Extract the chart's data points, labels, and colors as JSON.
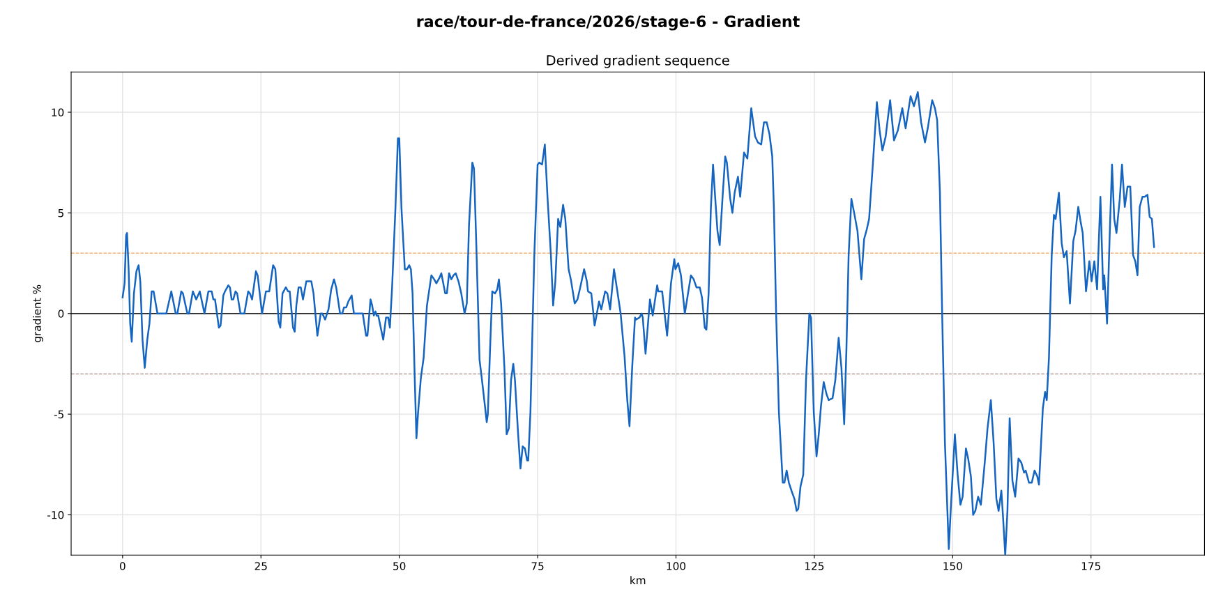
{
  "chart_data": {
    "type": "line",
    "title": "race/tour-de-france/2026/stage-6 - Gradient",
    "subtitle": "Derived gradient sequence",
    "xlabel": "km",
    "ylabel": "gradient %",
    "xlim": [
      -9.3,
      195.5
    ],
    "ylim": [
      -12,
      12
    ],
    "xticks": [
      0,
      25,
      50,
      75,
      100,
      125,
      150,
      175
    ],
    "yticks": [
      -10,
      -5,
      0,
      5,
      10
    ],
    "grid": true,
    "legend": false,
    "marker": "none",
    "line_style": "solid",
    "ref_lines": [
      {
        "axis": "y",
        "value": 3,
        "label": null,
        "color": "#f2a65e",
        "line_style": "dashed"
      },
      {
        "axis": "y",
        "value": -3,
        "label": null,
        "color": "#a88a86",
        "line_style": "dashed"
      },
      {
        "axis": "y",
        "value": 0,
        "label": null,
        "color": "#222222",
        "line_style": "solid"
      }
    ],
    "series": [
      {
        "color": "#1565c0",
        "x": [
          0,
          0.36,
          0.64,
          0.8,
          1.09,
          1.37,
          1.65,
          2.05,
          2.5,
          2.89,
          3.2,
          3.6,
          4.0,
          4.46,
          4.85,
          5.25,
          5.6,
          6.3,
          7.9,
          8.8,
          9.6,
          9.9,
          10.6,
          10.9,
          11.7,
          12,
          12.7,
          13.3,
          13.95,
          14.8,
          15.5,
          16.1,
          16.4,
          16.7,
          17.4,
          17.7,
          18.2,
          18.5,
          19.1,
          19.4,
          19.7,
          20.0,
          20.4,
          20.7,
          21.3,
          22,
          22.7,
          23,
          23.4,
          24.1,
          24.4,
          25.2,
          25.9,
          26.5,
          27.2,
          27.6,
          28.2,
          28.5,
          28.9,
          29.5,
          29.9,
          30.2,
          30.8,
          31.1,
          31.4,
          31.8,
          32.2,
          32.6,
          33.2,
          34.1,
          34.5,
          35.2,
          35.8,
          36.1,
          36.6,
          37.2,
          37.7,
          38.2,
          38.6,
          39.3,
          39.7,
          40,
          40.4,
          40.8,
          41.4,
          41.8,
          43.0,
          43.4,
          44.0,
          44.25,
          44.8,
          45.1,
          45.4,
          45.7,
          45.9,
          46.2,
          47.1,
          47.6,
          48.0,
          48.3,
          48.7,
          49.3,
          49.75,
          50.0,
          50.4,
          51.0,
          51.4,
          51.8,
          52.1,
          52.4,
          52.8,
          53.1,
          53.4,
          53.9,
          54.4,
          55.0,
          55.8,
          56.3,
          56.7,
          57.3,
          57.6,
          58.3,
          58.6,
          59.0,
          59.4,
          59.8,
          60.2,
          60.7,
          61.2,
          61.8,
          62.2,
          62.6,
          63.2,
          63.5,
          63.9,
          64.5,
          64.9,
          65.4,
          65.8,
          66.0,
          66.4,
          66.8,
          67.3,
          67.7,
          68.0,
          68.4,
          69.0,
          69.4,
          69.8,
          70.2,
          70.6,
          70.9,
          71.5,
          71.9,
          72.3,
          72.7,
          73.1,
          73.3,
          73.7,
          74.4,
          75.0,
          75.3,
          75.8,
          76.3,
          76.8,
          77.4,
          77.8,
          78.2,
          78.7,
          79.1,
          79.6,
          80.0,
          80.6,
          81.0,
          81.7,
          82.2,
          82.7,
          83.4,
          83.9,
          84.1,
          84.7,
          85.3,
          86.1,
          86.5,
          87.2,
          87.6,
          88.1,
          88.8,
          89.3,
          90.0,
          90.7,
          91.2,
          91.6,
          92.1,
          92.6,
          92.8,
          93.4,
          93.8,
          94.0,
          94.5,
          95.3,
          95.8,
          96.6,
          96.8,
          97.5,
          98.4,
          99.1,
          99.7,
          99.9,
          100.4,
          100.9,
          101.6,
          102.7,
          103.2,
          103.7,
          104.3,
          104.7,
          105.2,
          105.5,
          105.9,
          106.3,
          106.7,
          107.1,
          107.5,
          107.9,
          108.4,
          108.9,
          109.2,
          109.8,
          110.2,
          110.6,
          111.2,
          111.6,
          112.3,
          112.9,
          113.6,
          114.3,
          114.8,
          115.4,
          115.9,
          116.4,
          116.9,
          117.4,
          117.7,
          118.1,
          118.6,
          119.3,
          119.6,
          120.0,
          120.4,
          121.0,
          121.4,
          121.8,
          122.1,
          122.5,
          123.0,
          123.5,
          124.1,
          124.4,
          124.9,
          125.4,
          125.8,
          126.2,
          126.7,
          127.2,
          127.6,
          128.3,
          128.8,
          129.4,
          129.9,
          130.4,
          130.8,
          131.2,
          131.7,
          132.2,
          132.8,
          133.5,
          134.0,
          134.5,
          134.9,
          135.6,
          136.3,
          136.8,
          137.3,
          137.9,
          138.2,
          138.7,
          139.4,
          140.1,
          140.9,
          141.5,
          142.4,
          143.0,
          143.7,
          144.3,
          145.0,
          145.5,
          146.3,
          146.8,
          147.2,
          147.7,
          148.1,
          148.6,
          149.3,
          149.7,
          150.4,
          150.9,
          151.4,
          151.8,
          152.4,
          152.8,
          153.3,
          153.7,
          154.1,
          154.6,
          155.1,
          155.8,
          156.3,
          156.9,
          157.4,
          157.9,
          158.3,
          158.8,
          159.1,
          159.5,
          159.9,
          160.3,
          160.8,
          161.3,
          161.9,
          162.4,
          162.9,
          163.2,
          163.8,
          164.3,
          164.8,
          165.3,
          165.6,
          166.3,
          166.7,
          167.0,
          167.4,
          167.9,
          168.3,
          168.6,
          169.2,
          169.7,
          170.1,
          170.6,
          171.2,
          171.8,
          172.2,
          172.7,
          173.1,
          173.5,
          174.1,
          174.7,
          175.1,
          175.6,
          176.1,
          176.7,
          177.2,
          177.4,
          177.9,
          178.4,
          178.8,
          179.2,
          179.6,
          180.2,
          180.6,
          181.1,
          181.6,
          182.1,
          182.6,
          183.0,
          183.4,
          183.8,
          184.3,
          184.7,
          185.2,
          185.6,
          186.0,
          186.4
        ],
        "values": [
          0.8,
          1.5,
          3.9,
          4.0,
          2.2,
          -0.5,
          -1.4,
          1.0,
          2.1,
          2.4,
          1.6,
          -1.3,
          -2.7,
          -1.3,
          -0.5,
          1.1,
          1.1,
          0,
          0,
          1.1,
          0,
          0,
          1.1,
          1.0,
          0,
          0,
          1.1,
          0.7,
          1.1,
          0,
          1.1,
          1.1,
          0.7,
          0.7,
          -0.7,
          -0.6,
          0.9,
          1.1,
          1.4,
          1.3,
          0.7,
          0.7,
          1.1,
          1.0,
          0,
          0,
          1.1,
          1.0,
          0.7,
          2.1,
          1.9,
          0,
          1.1,
          1.1,
          2.4,
          2.2,
          -0.4,
          -0.7,
          1.0,
          1.3,
          1.1,
          1.1,
          -0.7,
          -0.9,
          0.4,
          1.3,
          1.3,
          0.7,
          1.6,
          1.6,
          1.0,
          -1.1,
          0,
          0,
          -0.3,
          0.2,
          1.2,
          1.7,
          1.3,
          0,
          0,
          0.3,
          0.3,
          0.6,
          0.9,
          0,
          0,
          0,
          -1.1,
          -1.1,
          0.7,
          0.4,
          -0.1,
          0.1,
          -0.1,
          -0.1,
          -1.3,
          -0.2,
          -0.2,
          -0.7,
          1.3,
          5.2,
          8.7,
          8.7,
          5.2,
          2.2,
          2.2,
          2.4,
          2.2,
          1.0,
          -3.3,
          -6.2,
          -4.9,
          -3.2,
          -2.2,
          0.4,
          1.9,
          1.7,
          1.5,
          1.8,
          2.0,
          1.0,
          1.0,
          2.0,
          1.7,
          1.9,
          2.0,
          1.6,
          1.0,
          0,
          0.5,
          4.4,
          7.5,
          7.2,
          3.6,
          -2.3,
          -3.2,
          -4.4,
          -5.4,
          -5.0,
          -1.8,
          1.1,
          1.0,
          1.2,
          1.7,
          0.5,
          -2.7,
          -6.0,
          -5.7,
          -3.3,
          -2.5,
          -3.3,
          -6.1,
          -7.7,
          -6.6,
          -6.7,
          -7.3,
          -7.3,
          -4.9,
          2.9,
          7.4,
          7.5,
          7.4,
          8.4,
          5.7,
          2.9,
          0.4,
          1.6,
          4.7,
          4.3,
          5.4,
          4.7,
          2.2,
          1.7,
          0.5,
          0.7,
          1.3,
          2.2,
          1.6,
          1.1,
          1.0,
          -0.6,
          0.6,
          0.2,
          1.1,
          1.0,
          0.2,
          2.2,
          1.3,
          0,
          -2.1,
          -4.3,
          -5.6,
          -2.6,
          -0.2,
          -0.3,
          -0.2,
          0,
          -0.2,
          -2.0,
          0.7,
          -0.1,
          1.4,
          1.1,
          1.1,
          -1.1,
          1.5,
          2.7,
          2.2,
          2.5,
          1.9,
          0,
          1.9,
          1.7,
          1.3,
          1.3,
          0.8,
          -0.7,
          -0.8,
          1.0,
          5.2,
          7.4,
          5.7,
          4.1,
          3.4,
          5.7,
          7.8,
          7.5,
          5.7,
          5.0,
          6.0,
          6.8,
          5.8,
          8.0,
          7.7,
          10.2,
          8.8,
          8.5,
          8.4,
          9.5,
          9.5,
          8.9,
          7.8,
          5.2,
          0,
          -4.9,
          -8.4,
          -8.4,
          -7.8,
          -8.4,
          -8.9,
          -9.2,
          -9.8,
          -9.7,
          -8.6,
          -8.0,
          -3.3,
          0,
          -0.2,
          -4.9,
          -7.1,
          -6.0,
          -4.6,
          -3.4,
          -4.0,
          -4.3,
          -4.2,
          -3.3,
          -1.2,
          -2.7,
          -5.5,
          -1.8,
          2.9,
          5.7,
          5.0,
          4.1,
          1.7,
          3.7,
          4.2,
          4.7,
          7.5,
          10.5,
          9.1,
          8.1,
          8.8,
          9.5,
          10.6,
          8.6,
          9.1,
          10.2,
          9.2,
          10.8,
          10.3,
          11.0,
          9.5,
          8.5,
          9.2,
          10.6,
          10.2,
          9.6,
          6.0,
          0,
          -6.4,
          -11.7,
          -9.5,
          -6.0,
          -8.0,
          -9.5,
          -9.1,
          -6.7,
          -7.2,
          -8.1,
          -10.0,
          -9.8,
          -9.1,
          -9.5,
          -7.4,
          -5.7,
          -4.3,
          -6.4,
          -9.2,
          -9.8,
          -8.8,
          -10.1,
          -12.0,
          -9.8,
          -5.2,
          -8.3,
          -9.1,
          -7.2,
          -7.4,
          -7.9,
          -7.8,
          -8.4,
          -8.4,
          -7.8,
          -8.1,
          -8.5,
          -4.7,
          -3.9,
          -4.3,
          -2.2,
          2.9,
          4.9,
          4.7,
          6.0,
          3.5,
          2.8,
          3.1,
          0.5,
          3.6,
          4.1,
          5.3,
          4.6,
          4.0,
          1.1,
          2.6,
          1.6,
          2.6,
          1.2,
          5.8,
          1.2,
          1.9,
          -0.5,
          4.1,
          7.4,
          4.7,
          4.0,
          5.7,
          7.4,
          5.3,
          6.3,
          6.3,
          2.9,
          2.6,
          1.9,
          5.3,
          5.8,
          5.8,
          5.9,
          4.8,
          4.7,
          3.3
        ]
      }
    ]
  }
}
